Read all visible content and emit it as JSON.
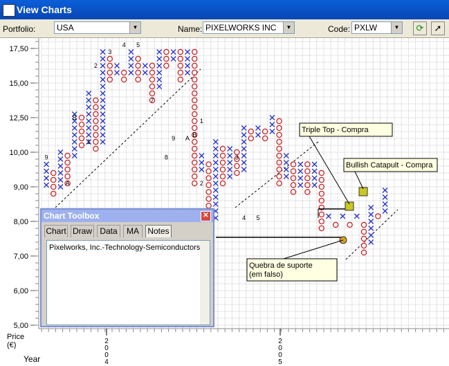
{
  "window": {
    "title": "View Charts"
  },
  "toolbar": {
    "portfolio_label": "Portfolio:",
    "portfolio_value": "USA",
    "name_label": "Name:",
    "name_value": "PIXELWORKS INC",
    "code_label": "Code:",
    "code_value": "PXLW",
    "refresh_icon": "refresh-icon",
    "pointer_icon": "pointer-icon"
  },
  "chart_data": {
    "type": "point-and-figure",
    "y_tick_labels": [
      "17,50",
      "15,00",
      "12,50",
      "10,00",
      "9,00",
      "8,00",
      "7,00",
      "6,00",
      "5,00"
    ],
    "y_ticks": [
      17.5,
      15.0,
      12.5,
      10.0,
      9.0,
      8.0,
      7.0,
      6.0,
      5.0
    ],
    "y_axis_label": "Price (€)",
    "x_axis_label": "Year",
    "years": [
      {
        "label": "2004"
      },
      {
        "label": "2005"
      }
    ],
    "columns": [
      {
        "type": "X",
        "from": 9.0,
        "to": 9.75
      },
      {
        "type": "O",
        "from": 8.75,
        "to": 9.5
      },
      {
        "type": "X",
        "from": 9.0,
        "to": 10.25
      },
      {
        "type": "O",
        "from": 9.0,
        "to": 10.0
      },
      {
        "type": "X",
        "from": 9.75,
        "to": 13.0
      },
      {
        "type": "O",
        "from": 10.25,
        "to": 12.75
      },
      {
        "type": "X",
        "from": 10.5,
        "to": 14.5
      },
      {
        "type": "O",
        "from": 10.0,
        "to": 14.0
      },
      {
        "type": "X",
        "from": 10.5,
        "to": 17.5
      },
      {
        "type": "O",
        "from": 15.0,
        "to": 17.0
      },
      {
        "type": "X",
        "from": 15.5,
        "to": 16.5
      },
      {
        "type": "O",
        "from": 15.0,
        "to": 16.0
      },
      {
        "type": "X",
        "from": 15.5,
        "to": 17.5
      },
      {
        "type": "O",
        "from": 15.0,
        "to": 17.0
      },
      {
        "type": "X",
        "from": 15.5,
        "to": 16.5
      },
      {
        "type": "O",
        "from": 13.5,
        "to": 16.5
      },
      {
        "type": "X",
        "from": 14.5,
        "to": 17.5
      },
      {
        "type": "O",
        "from": 16.0,
        "to": 17.5
      },
      {
        "type": "X",
        "from": 16.5,
        "to": 17.5
      },
      {
        "type": "O",
        "from": 15.0,
        "to": 17.5
      },
      {
        "type": "X",
        "from": 15.5,
        "to": 17.5
      },
      {
        "type": "O",
        "from": 9.0,
        "to": 17.5
      },
      {
        "type": "X",
        "from": 9.5,
        "to": 10.0
      },
      {
        "type": "O",
        "from": 7.75,
        "to": 9.75
      },
      {
        "type": "X",
        "from": 8.0,
        "to": 11.0
      },
      {
        "type": "O",
        "from": 9.0,
        "to": 10.5
      },
      {
        "type": "X",
        "from": 9.25,
        "to": 10.5
      },
      {
        "type": "O",
        "from": 9.25,
        "to": 10.25
      },
      {
        "type": "X",
        "from": 9.5,
        "to": 12.0
      },
      {
        "type": "O",
        "from": 11.0,
        "to": 11.75
      },
      {
        "type": "X",
        "from": 11.25,
        "to": 12.0
      },
      {
        "type": "O",
        "from": 11.0,
        "to": 11.75
      },
      {
        "type": "X",
        "from": 11.25,
        "to": 12.75
      },
      {
        "type": "O",
        "from": 9.0,
        "to": 12.5
      },
      {
        "type": "X",
        "from": 9.25,
        "to": 10.0
      },
      {
        "type": "O",
        "from": 8.75,
        "to": 9.75
      },
      {
        "type": "X",
        "from": 9.0,
        "to": 9.75
      },
      {
        "type": "O",
        "from": 8.75,
        "to": 9.75
      },
      {
        "type": "X",
        "from": 9.0,
        "to": 9.75
      },
      {
        "type": "O",
        "from": 7.75,
        "to": 9.5
      },
      {
        "type": "X",
        "from": 8.0,
        "to": 8.25
      },
      {
        "type": "O",
        "from": 7.75,
        "to": 8.0
      },
      {
        "type": "X",
        "from": 8.0,
        "to": 8.25
      },
      {
        "type": "O",
        "from": 7.75,
        "to": 8.0
      },
      {
        "type": "X",
        "from": 8.0,
        "to": 8.25
      },
      {
        "type": "O",
        "from": 7.0,
        "to": 8.0
      },
      {
        "type": "X",
        "from": 7.25,
        "to": 8.5
      },
      {
        "type": "O",
        "from": 8.0,
        "to": 8.25
      },
      {
        "type": "X",
        "from": 8.25,
        "to": 9.0
      }
    ],
    "markers": [
      {
        "text": "9",
        "col": 0,
        "price": 9.75
      },
      {
        "text": "A",
        "col": 3,
        "price": 9.0
      },
      {
        "text": "B",
        "col": 4,
        "price": 12.25
      },
      {
        "text": "1",
        "col": 6,
        "price": 10.5
      },
      {
        "text": "2",
        "col": 7,
        "price": 16.0
      },
      {
        "text": "3",
        "col": 9,
        "price": 17.0
      },
      {
        "text": "4",
        "col": 11,
        "price": 17.5
      },
      {
        "text": "5",
        "col": 13,
        "price": 17.5
      },
      {
        "text": "7",
        "col": 15,
        "price": 13.5
      },
      {
        "text": "8",
        "col": 17,
        "price": 9.75
      },
      {
        "text": "9",
        "col": 18,
        "price": 10.75
      },
      {
        "text": "A",
        "col": 20,
        "price": 10.75
      },
      {
        "text": "B",
        "col": 21,
        "price": 11.0
      },
      {
        "text": "1",
        "col": 22,
        "price": 12.0
      },
      {
        "text": "2",
        "col": 22,
        "price": 9.0
      },
      {
        "text": "3",
        "col": 27,
        "price": 9.75
      },
      {
        "text": "4",
        "col": 28,
        "price": 8.0
      },
      {
        "text": "5",
        "col": 30,
        "price": 8.0
      }
    ],
    "annotations": [
      {
        "id": "triple-top",
        "text": "Triple Top - Compra"
      },
      {
        "id": "bullish-catapult",
        "text": "Bullish Catapult - Compra"
      },
      {
        "id": "quebra-suporte",
        "text": "Quebra de suporte (em falso)"
      }
    ],
    "colors": {
      "x": "#2233cc",
      "o": "#cc2222",
      "grid": "#c8c8c8",
      "highlight": "#c8c820"
    }
  },
  "toolbox": {
    "title": "Chart Toolbox",
    "tabs": [
      "Chart",
      "Draw",
      "Data",
      "MA",
      "Notes"
    ],
    "active_tab": "Notes",
    "notes_text": "Pixelworks, Inc.-Technology-Semiconductors"
  }
}
